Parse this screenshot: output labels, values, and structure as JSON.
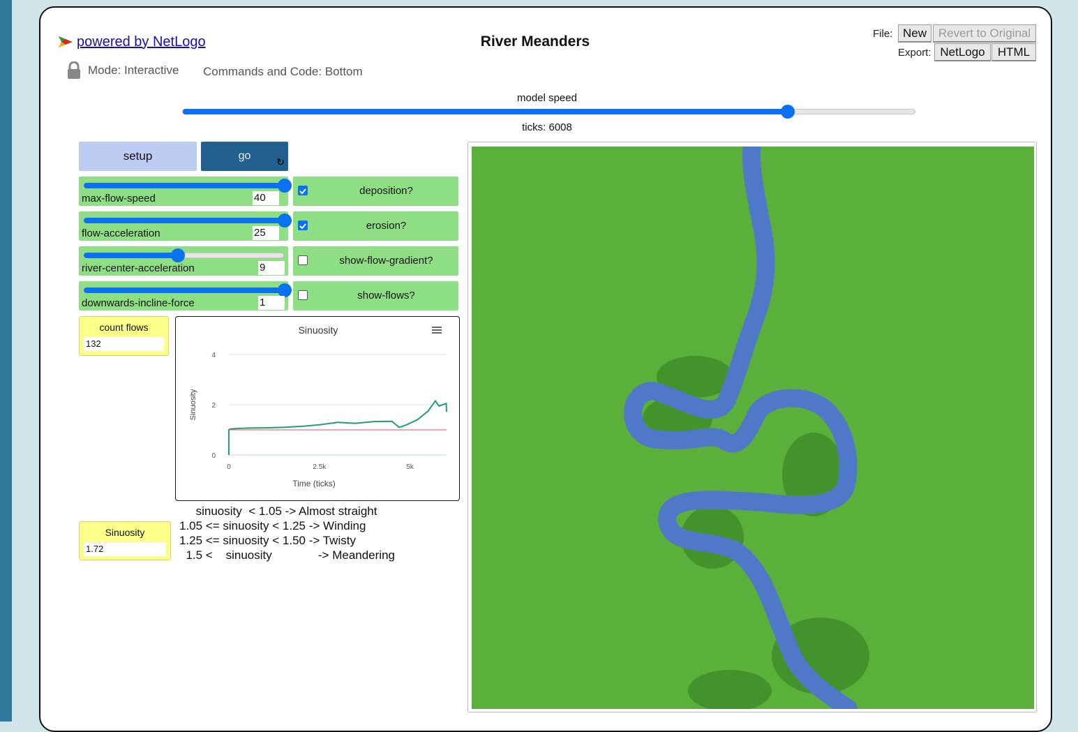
{
  "header": {
    "powered_by": "powered by NetLogo",
    "title": "River Meanders",
    "file_label": "File:",
    "export_label": "Export:",
    "new_button": "New",
    "revert_button": "Revert to Original",
    "export_netlogo": "NetLogo",
    "export_html": "HTML",
    "mode": "Mode: Interactive",
    "commands_code": "Commands and Code: Bottom"
  },
  "speed": {
    "label": "model speed",
    "ticks": "ticks: 6008",
    "value": 0.825
  },
  "buttons": {
    "setup": "setup",
    "go": "go"
  },
  "sliders": [
    {
      "label": "max-flow-speed",
      "value": "40",
      "position": 1.0
    },
    {
      "label": "flow-acceleration",
      "value": "25",
      "position": 1.0
    },
    {
      "label": "river-center-acceleration",
      "value": "9",
      "position": 0.47
    },
    {
      "label": "downwards-incline-force",
      "value": "1",
      "position": 1.0
    }
  ],
  "switches": [
    {
      "label": "deposition?",
      "checked": true
    },
    {
      "label": "erosion?",
      "checked": true
    },
    {
      "label": "show-flow-gradient?",
      "checked": false
    },
    {
      "label": "show-flows?",
      "checked": false
    }
  ],
  "monitors": {
    "count_flows": {
      "label": "count flows",
      "value": "132"
    },
    "sinuosity": {
      "label": "Sinuosity",
      "value": "1.72"
    }
  },
  "notes": [
    "     sinuosity  < 1.05 -> Almost straight",
    "1.05 <= sinuosity < 1.25 -> Winding",
    "1.25 <= sinuosity < 1.50 -> Twisty",
    "  1.5 <    sinuosity              -> Meandering"
  ],
  "chart_data": {
    "type": "line",
    "title": "Sinuosity",
    "xlabel": "Time (ticks)",
    "ylabel": "Sinuosity",
    "xlim": [
      0,
      6008
    ],
    "ylim": [
      0,
      4
    ],
    "x_tick_labels": [
      "0",
      "2.5k",
      "5k"
    ],
    "x_ticks": [
      0,
      2500,
      5000
    ],
    "y_tick_labels": [
      "0",
      "2",
      "4"
    ],
    "y_ticks": [
      0,
      2,
      4
    ],
    "series": [
      {
        "color": "#1f9e77",
        "x": [
          0,
          0,
          50,
          500,
          1000,
          1500,
          2000,
          2500,
          3000,
          3500,
          4000,
          4500,
          4700,
          4900,
          5200,
          5500,
          5700,
          5800,
          5900,
          6000,
          6008
        ],
        "y": [
          0,
          1.0,
          1.04,
          1.07,
          1.08,
          1.1,
          1.14,
          1.2,
          1.3,
          1.26,
          1.33,
          1.34,
          1.1,
          1.2,
          1.4,
          1.75,
          2.15,
          1.95,
          2.0,
          2.05,
          1.72
        ]
      },
      {
        "color": "#e8514f",
        "x": [
          0,
          6008
        ],
        "y": [
          1.0,
          1.0
        ]
      }
    ],
    "grid": true
  },
  "colors": {
    "land": "#5bb03b",
    "water": "#4f78c8",
    "bank": "#3f8e2a"
  },
  "icons": {
    "logo": "netlogo-logo-icon",
    "lock": "lock-icon",
    "menu": "hamburger-menu-icon",
    "loop": "forever-loop-icon"
  }
}
